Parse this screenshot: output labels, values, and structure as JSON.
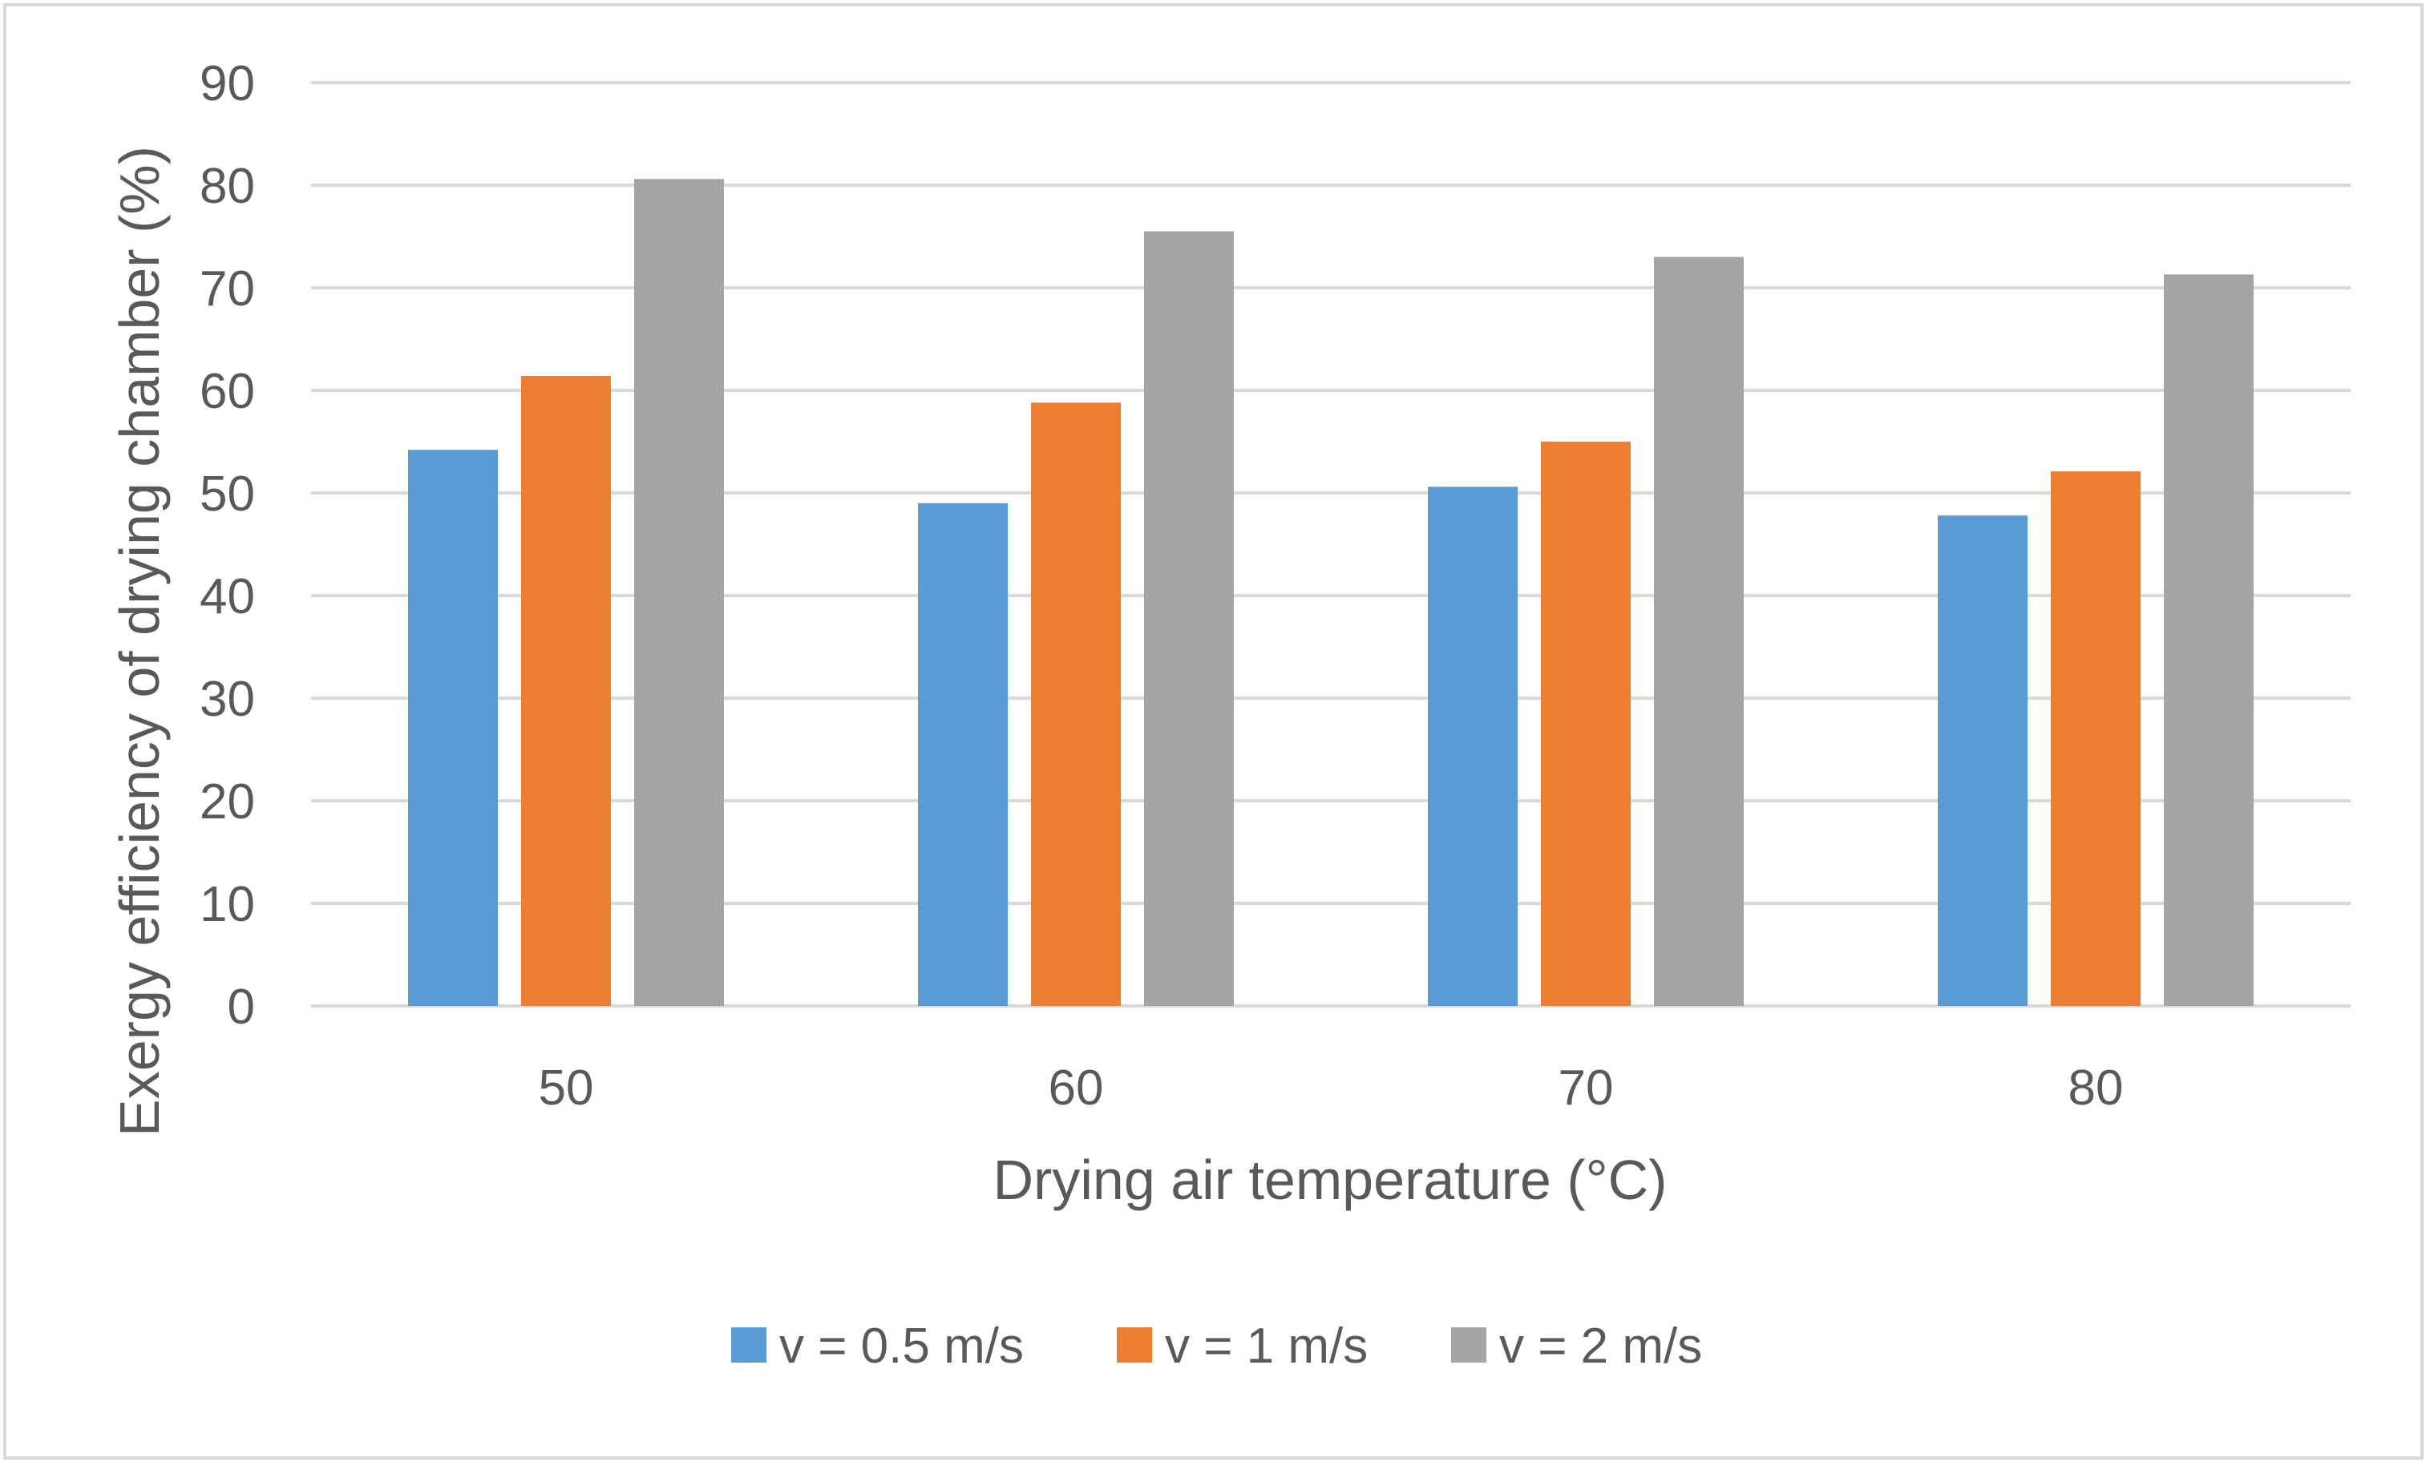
{
  "chart_data": {
    "type": "bar",
    "title": "",
    "xlabel": "Drying air temperature (°C)",
    "ylabel": "Exergy efficiency of drying chamber (%)",
    "categories": [
      "50",
      "60",
      "70",
      "80"
    ],
    "ylim": [
      0,
      90
    ],
    "yticks": [
      "0",
      "10",
      "20",
      "30",
      "40",
      "50",
      "60",
      "70",
      "80",
      "90"
    ],
    "grid": true,
    "legend_position": "bottom",
    "series": [
      {
        "name": "v = 0.5 m/s",
        "color": "#5b9bd5",
        "values": [
          54.2,
          49.0,
          50.6,
          47.8
        ]
      },
      {
        "name": "v = 1 m/s",
        "color": "#ed7d31",
        "values": [
          61.4,
          58.8,
          55.0,
          52.1
        ]
      },
      {
        "name": "v = 2 m/s",
        "color": "#a5a5a5",
        "values": [
          80.6,
          75.5,
          73.0,
          71.3
        ]
      }
    ]
  },
  "colors": {
    "gridline": "#d9d9d9",
    "axis_text": "#595959",
    "border": "#d9d9d9"
  }
}
